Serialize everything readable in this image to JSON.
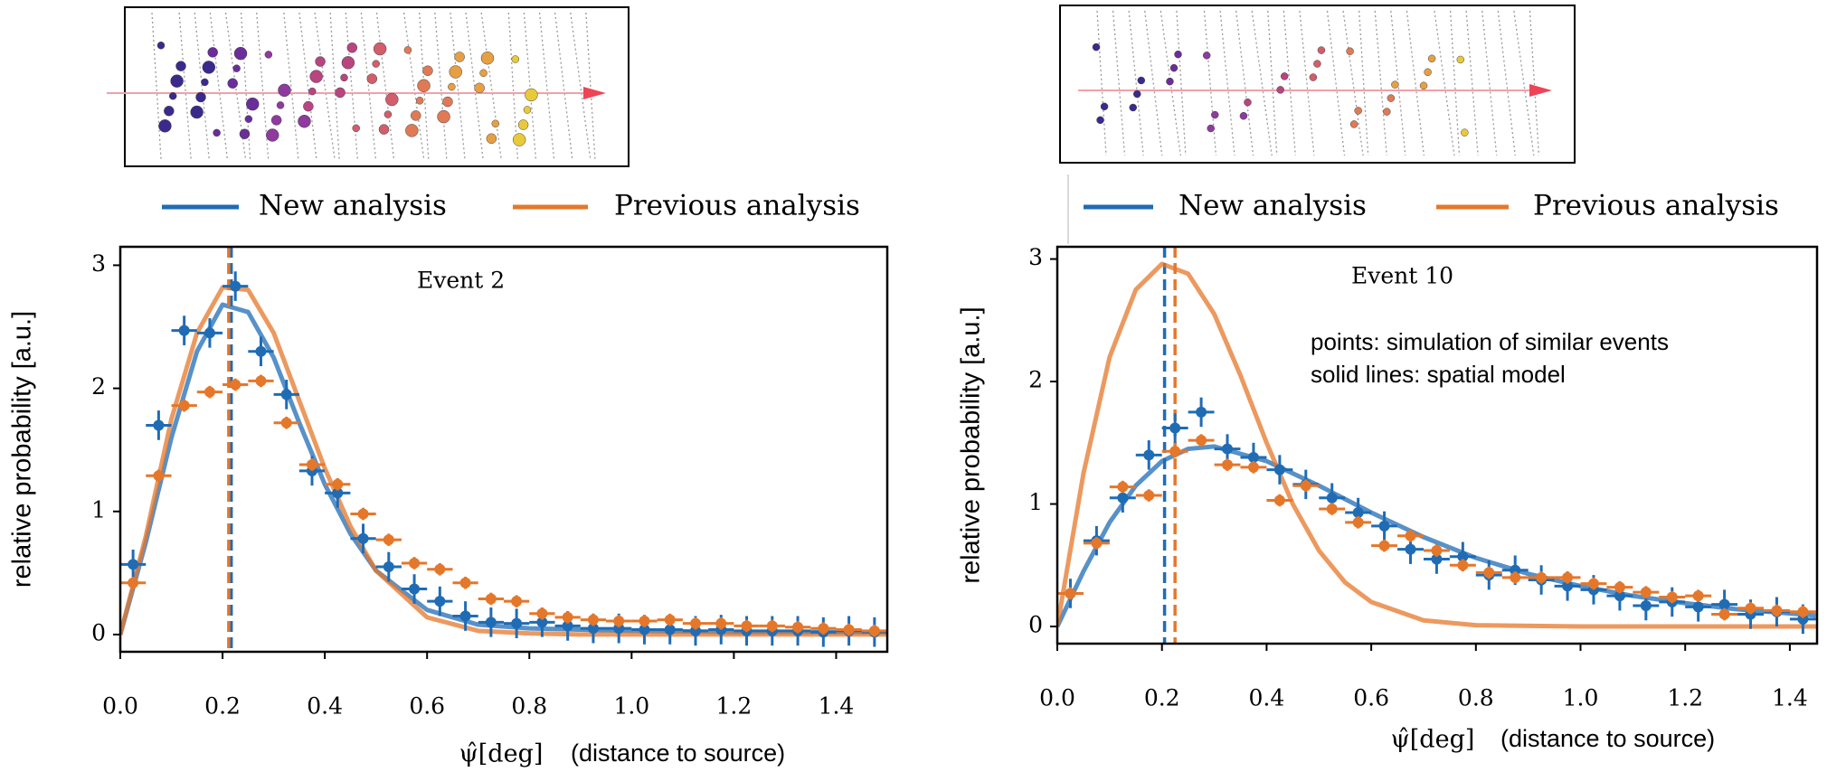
{
  "chart_data": [
    {
      "type": "line",
      "annotation": "Event 2",
      "ylabel": "relative probability [a.u.]",
      "xlabel": "ψ̂[deg]",
      "xlabel_note": "(distance to source)",
      "xlim": [
        0,
        1.5
      ],
      "ylim": [
        -0.14,
        3.15
      ],
      "xticks": [
        {
          "value": 0,
          "label": "0.0"
        },
        {
          "value": 0.2,
          "label": "0.2"
        },
        {
          "value": 0.4,
          "label": "0.4"
        },
        {
          "value": 0.6,
          "label": "0.6"
        },
        {
          "value": 0.8,
          "label": "0.8"
        },
        {
          "value": 1.0,
          "label": "1.0"
        },
        {
          "value": 1.2,
          "label": "1.2"
        },
        {
          "value": 1.4,
          "label": "1.4"
        }
      ],
      "yticks": [
        0,
        1,
        2,
        3
      ],
      "series": [
        {
          "name": "New analysis",
          "color": "#1f6cb5",
          "median": 0.217,
          "model": {
            "x": [
              0,
              0.05,
              0.1,
              0.15,
              0.2,
              0.25,
              0.3,
              0.35,
              0.4,
              0.45,
              0.5,
              0.6,
              0.7,
              0.8,
              0.9,
              1.0,
              1.2,
              1.5
            ],
            "values": [
              0,
              0.75,
              1.6,
              2.3,
              2.68,
              2.62,
              2.25,
              1.72,
              1.22,
              0.82,
              0.52,
              0.2,
              0.08,
              0.05,
              0.04,
              0.03,
              0.02,
              0.02
            ]
          },
          "points": {
            "xerr": 0.025,
            "yerr": 0.12,
            "x": [
              0.025,
              0.075,
              0.125,
              0.175,
              0.225,
              0.275,
              0.325,
              0.375,
              0.425,
              0.475,
              0.525,
              0.575,
              0.625,
              0.675,
              0.725,
              0.775,
              0.825,
              0.875,
              0.925,
              0.975,
              1.025,
              1.075,
              1.125,
              1.175,
              1.225,
              1.275,
              1.325,
              1.375,
              1.425,
              1.475
            ],
            "values": [
              0.57,
              1.7,
              2.47,
              2.45,
              2.83,
              2.3,
              1.95,
              1.33,
              1.15,
              0.78,
              0.55,
              0.37,
              0.27,
              0.15,
              0.1,
              0.09,
              0.1,
              0.07,
              0.05,
              0.05,
              0.04,
              0.04,
              0.03,
              0.04,
              0.03,
              0.03,
              0.03,
              0.02,
              0.03,
              0.02
            ]
          }
        },
        {
          "name": "Previous analysis",
          "color": "#e5772a",
          "median": 0.212,
          "model": {
            "x": [
              0,
              0.05,
              0.1,
              0.15,
              0.2,
              0.25,
              0.3,
              0.35,
              0.4,
              0.45,
              0.5,
              0.6,
              0.7,
              0.8,
              0.9,
              1.0,
              1.2,
              1.5
            ],
            "values": [
              0,
              0.8,
              1.75,
              2.45,
              2.82,
              2.8,
              2.45,
              1.9,
              1.35,
              0.88,
              0.52,
              0.14,
              0.03,
              0.01,
              0,
              0,
              0,
              0
            ]
          },
          "points": {
            "xerr": 0.025,
            "yerr": 0.05,
            "x": [
              0.025,
              0.075,
              0.125,
              0.175,
              0.225,
              0.275,
              0.325,
              0.375,
              0.425,
              0.475,
              0.525,
              0.575,
              0.625,
              0.675,
              0.725,
              0.775,
              0.825,
              0.875,
              0.925,
              0.975,
              1.025,
              1.075,
              1.125,
              1.175,
              1.225,
              1.275,
              1.325,
              1.375,
              1.425,
              1.475
            ],
            "values": [
              0.42,
              1.29,
              1.86,
              1.97,
              2.03,
              2.06,
              1.72,
              1.38,
              1.22,
              0.98,
              0.77,
              0.58,
              0.53,
              0.42,
              0.29,
              0.27,
              0.17,
              0.14,
              0.12,
              0.11,
              0.11,
              0.12,
              0.09,
              0.09,
              0.07,
              0.07,
              0.06,
              0.05,
              0.04,
              0.03
            ]
          }
        }
      ]
    },
    {
      "type": "line",
      "annotation": "Event 10",
      "notes": [
        "points: simulation of similar events",
        "solid lines: spatial model"
      ],
      "ylabel": "relative probability [a.u.]",
      "xlabel": "ψ̂[deg]",
      "xlabel_note": "(distance to source)",
      "xlim": [
        0,
        1.452
      ],
      "ylim": [
        -0.14,
        3.1
      ],
      "xticks": [
        {
          "value": 0,
          "label": "0.0"
        },
        {
          "value": 0.2,
          "label": "0.2"
        },
        {
          "value": 0.4,
          "label": "0.4"
        },
        {
          "value": 0.6,
          "label": "0.6"
        },
        {
          "value": 0.8,
          "label": "0.8"
        },
        {
          "value": 1.0,
          "label": "1.0"
        },
        {
          "value": 1.2,
          "label": "1.2"
        },
        {
          "value": 1.4,
          "label": "1.4"
        }
      ],
      "yticks": [
        0,
        1,
        2,
        3
      ],
      "series": [
        {
          "name": "New analysis",
          "color": "#1f6cb5",
          "median": 0.205,
          "model": {
            "x": [
              0,
              0.05,
              0.1,
              0.15,
              0.2,
              0.25,
              0.3,
              0.4,
              0.5,
              0.6,
              0.7,
              0.8,
              0.9,
              1.0,
              1.1,
              1.2,
              1.3,
              1.45
            ],
            "values": [
              0,
              0.45,
              0.85,
              1.15,
              1.35,
              1.45,
              1.47,
              1.35,
              1.15,
              0.93,
              0.73,
              0.56,
              0.43,
              0.33,
              0.25,
              0.19,
              0.14,
              0.09
            ]
          },
          "points": {
            "xerr": 0.025,
            "yerr": 0.12,
            "x": [
              0.025,
              0.075,
              0.125,
              0.175,
              0.225,
              0.275,
              0.325,
              0.375,
              0.425,
              0.475,
              0.525,
              0.575,
              0.625,
              0.675,
              0.725,
              0.775,
              0.825,
              0.875,
              0.925,
              0.975,
              1.025,
              1.075,
              1.125,
              1.175,
              1.225,
              1.275,
              1.325,
              1.375,
              1.425
            ],
            "values": [
              0.27,
              0.7,
              1.05,
              1.4,
              1.62,
              1.75,
              1.45,
              1.38,
              1.28,
              1.16,
              1.05,
              0.93,
              0.82,
              0.63,
              0.55,
              0.57,
              0.42,
              0.46,
              0.38,
              0.33,
              0.3,
              0.25,
              0.17,
              0.2,
              0.16,
              0.18,
              0.1,
              0.12,
              0.06
            ]
          }
        },
        {
          "name": "Previous analysis",
          "color": "#e5772a",
          "median": 0.225,
          "model": {
            "x": [
              0,
              0.05,
              0.1,
              0.15,
              0.2,
              0.25,
              0.3,
              0.35,
              0.4,
              0.45,
              0.5,
              0.55,
              0.6,
              0.7,
              0.8,
              1.0,
              1.45
            ],
            "values": [
              0,
              1.25,
              2.2,
              2.75,
              2.96,
              2.88,
              2.55,
              2.05,
              1.5,
              1.0,
              0.62,
              0.36,
              0.2,
              0.05,
              0.01,
              0,
              0
            ]
          },
          "points": {
            "xerr": 0.025,
            "yerr": 0.05,
            "x": [
              0.025,
              0.075,
              0.125,
              0.175,
              0.225,
              0.275,
              0.325,
              0.375,
              0.425,
              0.475,
              0.525,
              0.575,
              0.625,
              0.675,
              0.725,
              0.775,
              0.825,
              0.875,
              0.925,
              0.975,
              1.025,
              1.075,
              1.125,
              1.175,
              1.225,
              1.275,
              1.325,
              1.375,
              1.425
            ],
            "values": [
              0.27,
              0.68,
              1.14,
              1.07,
              1.43,
              1.52,
              1.32,
              1.3,
              1.03,
              1.15,
              0.96,
              0.85,
              0.66,
              0.74,
              0.62,
              0.5,
              0.44,
              0.4,
              0.4,
              0.4,
              0.35,
              0.32,
              0.28,
              0.24,
              0.25,
              0.1,
              0.15,
              0.13,
              0.12
            ]
          }
        }
      ]
    }
  ]
}
